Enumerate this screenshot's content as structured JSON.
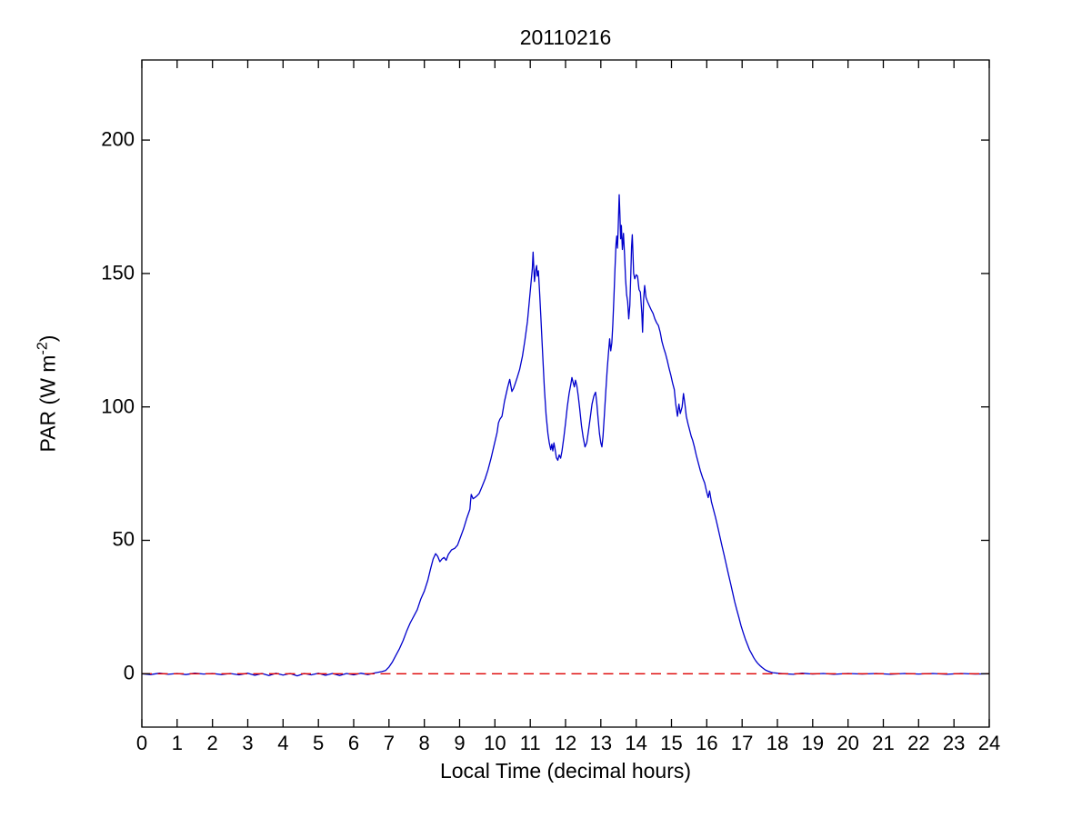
{
  "figure": {
    "background": "#ffffff",
    "axis_color": "#000000"
  },
  "chart_data": {
    "type": "line",
    "title": "20110216",
    "xlabel": "Local Time (decimal hours)",
    "ylabel": {
      "prefix": "PAR (W m",
      "superscript": "-2",
      "suffix": ")"
    },
    "xlim": [
      0,
      24
    ],
    "ylim": [
      -20,
      230
    ],
    "x_ticks": [
      0,
      1,
      2,
      3,
      4,
      5,
      6,
      7,
      8,
      9,
      10,
      11,
      12,
      13,
      14,
      15,
      16,
      17,
      18,
      19,
      20,
      21,
      22,
      23,
      24
    ],
    "y_ticks": [
      0,
      50,
      100,
      150,
      200
    ],
    "grid": false,
    "legend_position": "none",
    "series": [
      {
        "name": "par",
        "color": "#0000cc",
        "style": "solid",
        "points": [
          [
            0,
            0
          ],
          [
            0.25,
            -0.3
          ],
          [
            0.5,
            0.2
          ],
          [
            0.75,
            -0.2
          ],
          [
            1,
            0.1
          ],
          [
            1.25,
            -0.3
          ],
          [
            1.5,
            0.2
          ],
          [
            1.75,
            -0.1
          ],
          [
            2,
            0.1
          ],
          [
            2.25,
            -0.3
          ],
          [
            2.5,
            0.1
          ],
          [
            2.75,
            -0.4
          ],
          [
            3,
            0.2
          ],
          [
            3.2,
            -0.6
          ],
          [
            3.4,
            0.1
          ],
          [
            3.6,
            -0.7
          ],
          [
            3.8,
            0.2
          ],
          [
            4,
            -0.5
          ],
          [
            4.2,
            0.1
          ],
          [
            4.4,
            -0.8
          ],
          [
            4.6,
            0.1
          ],
          [
            4.8,
            -0.4
          ],
          [
            5,
            0.2
          ],
          [
            5.2,
            -0.6
          ],
          [
            5.4,
            0.1
          ],
          [
            5.6,
            -0.7
          ],
          [
            5.8,
            0.1
          ],
          [
            6,
            -0.4
          ],
          [
            6.2,
            0.2
          ],
          [
            6.4,
            -0.3
          ],
          [
            6.6,
            0.3
          ],
          [
            6.8,
            0.8
          ],
          [
            6.9,
            1.2
          ],
          [
            7,
            2.5
          ],
          [
            7.1,
            4.5
          ],
          [
            7.2,
            7
          ],
          [
            7.3,
            9.5
          ],
          [
            7.4,
            12.5
          ],
          [
            7.5,
            16
          ],
          [
            7.6,
            19
          ],
          [
            7.7,
            21.5
          ],
          [
            7.8,
            24
          ],
          [
            7.9,
            28
          ],
          [
            8,
            31
          ],
          [
            8.1,
            35
          ],
          [
            8.17,
            39
          ],
          [
            8.25,
            43
          ],
          [
            8.32,
            45
          ],
          [
            8.38,
            44
          ],
          [
            8.44,
            42
          ],
          [
            8.5,
            43
          ],
          [
            8.56,
            43.6
          ],
          [
            8.62,
            42.5
          ],
          [
            8.68,
            44.7
          ],
          [
            8.77,
            46.4
          ],
          [
            8.86,
            47
          ],
          [
            8.94,
            48.2
          ],
          [
            9.03,
            51.4
          ],
          [
            9.11,
            54.3
          ],
          [
            9.2,
            58.2
          ],
          [
            9.29,
            61.6
          ],
          [
            9.31,
            64.5
          ],
          [
            9.33,
            67.2
          ],
          [
            9.38,
            65.6
          ],
          [
            9.43,
            66
          ],
          [
            9.5,
            66.8
          ],
          [
            9.55,
            67.5
          ],
          [
            9.63,
            70
          ],
          [
            9.72,
            73
          ],
          [
            9.8,
            76.3
          ],
          [
            9.89,
            80.8
          ],
          [
            9.97,
            85.3
          ],
          [
            10.06,
            90.4
          ],
          [
            10.1,
            94
          ],
          [
            10.14,
            95.4
          ],
          [
            10.2,
            96.5
          ],
          [
            10.27,
            102
          ],
          [
            10.36,
            107.3
          ],
          [
            10.42,
            110.3
          ],
          [
            10.48,
            105.8
          ],
          [
            10.53,
            107
          ],
          [
            10.58,
            109
          ],
          [
            10.63,
            111
          ],
          [
            10.7,
            114
          ],
          [
            10.78,
            119
          ],
          [
            10.85,
            125
          ],
          [
            10.92,
            132
          ],
          [
            10.97,
            139
          ],
          [
            11.02,
            146
          ],
          [
            11.06,
            152
          ],
          [
            11.08,
            158
          ],
          [
            11.1,
            153
          ],
          [
            11.12,
            147
          ],
          [
            11.15,
            151
          ],
          [
            11.18,
            153
          ],
          [
            11.2,
            149
          ],
          [
            11.23,
            151
          ],
          [
            11.26,
            144
          ],
          [
            11.3,
            134
          ],
          [
            11.35,
            120
          ],
          [
            11.4,
            107
          ],
          [
            11.45,
            97
          ],
          [
            11.5,
            90
          ],
          [
            11.54,
            86.5
          ],
          [
            11.58,
            84
          ],
          [
            11.61,
            86
          ],
          [
            11.64,
            83.5
          ],
          [
            11.67,
            86.5
          ],
          [
            11.7,
            84.5
          ],
          [
            11.74,
            81
          ],
          [
            11.78,
            80
          ],
          [
            11.82,
            82
          ],
          [
            11.86,
            80.8
          ],
          [
            11.9,
            83.5
          ],
          [
            11.95,
            88.5
          ],
          [
            12,
            94
          ],
          [
            12.05,
            100
          ],
          [
            12.1,
            105
          ],
          [
            12.15,
            108.5
          ],
          [
            12.18,
            111
          ],
          [
            12.22,
            109
          ],
          [
            12.25,
            107.5
          ],
          [
            12.28,
            110
          ],
          [
            12.32,
            108
          ],
          [
            12.36,
            104
          ],
          [
            12.4,
            99.5
          ],
          [
            12.45,
            93
          ],
          [
            12.5,
            88.5
          ],
          [
            12.55,
            85
          ],
          [
            12.6,
            86.5
          ],
          [
            12.65,
            91
          ],
          [
            12.7,
            96
          ],
          [
            12.75,
            101
          ],
          [
            12.8,
            104
          ],
          [
            12.85,
            105.5
          ],
          [
            12.88,
            102
          ],
          [
            12.92,
            96
          ],
          [
            12.96,
            90
          ],
          [
            13,
            86.5
          ],
          [
            13.03,
            85
          ],
          [
            13.06,
            89
          ],
          [
            13.1,
            97
          ],
          [
            13.14,
            106
          ],
          [
            13.18,
            114
          ],
          [
            13.22,
            121
          ],
          [
            13.25,
            125.5
          ],
          [
            13.28,
            121
          ],
          [
            13.31,
            124
          ],
          [
            13.34,
            131
          ],
          [
            13.37,
            141
          ],
          [
            13.4,
            152
          ],
          [
            13.43,
            161
          ],
          [
            13.45,
            164
          ],
          [
            13.47,
            159.5
          ],
          [
            13.49,
            167
          ],
          [
            13.52,
            179.5
          ],
          [
            13.54,
            172
          ],
          [
            13.56,
            163
          ],
          [
            13.58,
            168
          ],
          [
            13.61,
            159
          ],
          [
            13.64,
            165
          ],
          [
            13.67,
            157
          ],
          [
            13.7,
            148
          ],
          [
            13.73,
            142
          ],
          [
            13.76,
            139.5
          ],
          [
            13.79,
            133
          ],
          [
            13.82,
            138
          ],
          [
            13.85,
            150
          ],
          [
            13.87,
            160
          ],
          [
            13.89,
            164.5
          ],
          [
            13.91,
            157
          ],
          [
            13.93,
            150
          ],
          [
            13.96,
            148
          ],
          [
            14,
            149.5
          ],
          [
            14.04,
            149
          ],
          [
            14.08,
            144
          ],
          [
            14.12,
            143
          ],
          [
            14.16,
            135
          ],
          [
            14.18,
            128
          ],
          [
            14.21,
            140
          ],
          [
            14.24,
            145.5
          ],
          [
            14.28,
            141
          ],
          [
            14.32,
            139.5
          ],
          [
            14.37,
            138
          ],
          [
            14.42,
            136.5
          ],
          [
            14.48,
            135
          ],
          [
            14.53,
            133
          ],
          [
            14.58,
            131.5
          ],
          [
            14.63,
            130.5
          ],
          [
            14.68,
            128
          ],
          [
            14.73,
            124.5
          ],
          [
            14.78,
            122
          ],
          [
            14.83,
            120
          ],
          [
            14.88,
            117.5
          ],
          [
            14.93,
            114.5
          ],
          [
            14.98,
            112
          ],
          [
            15.03,
            109
          ],
          [
            15.08,
            106.5
          ],
          [
            15.12,
            101
          ],
          [
            15.17,
            96.5
          ],
          [
            15.21,
            101
          ],
          [
            15.25,
            97.5
          ],
          [
            15.3,
            100
          ],
          [
            15.34,
            105
          ],
          [
            15.38,
            101
          ],
          [
            15.42,
            96.5
          ],
          [
            15.47,
            93.5
          ],
          [
            15.51,
            91.5
          ],
          [
            15.56,
            89
          ],
          [
            15.6,
            87.5
          ],
          [
            15.65,
            85
          ],
          [
            15.7,
            82
          ],
          [
            15.76,
            79
          ],
          [
            15.82,
            76
          ],
          [
            15.88,
            73.5
          ],
          [
            15.94,
            71.5
          ],
          [
            16,
            68
          ],
          [
            16.04,
            66
          ],
          [
            16.08,
            68.5
          ],
          [
            16.13,
            64.5
          ],
          [
            16.19,
            61.5
          ],
          [
            16.25,
            58.5
          ],
          [
            16.31,
            55
          ],
          [
            16.37,
            51.5
          ],
          [
            16.43,
            48
          ],
          [
            16.49,
            44.5
          ],
          [
            16.55,
            41
          ],
          [
            16.61,
            37.5
          ],
          [
            16.67,
            34
          ],
          [
            16.73,
            30.5
          ],
          [
            16.79,
            27
          ],
          [
            16.85,
            24
          ],
          [
            16.91,
            21
          ],
          [
            16.97,
            18
          ],
          [
            17.03,
            15.5
          ],
          [
            17.09,
            13
          ],
          [
            17.15,
            11
          ],
          [
            17.21,
            9
          ],
          [
            17.27,
            7.5
          ],
          [
            17.33,
            6
          ],
          [
            17.39,
            4.8
          ],
          [
            17.45,
            3.8
          ],
          [
            17.51,
            3
          ],
          [
            17.57,
            2.3
          ],
          [
            17.63,
            1.7
          ],
          [
            17.69,
            1.2
          ],
          [
            17.75,
            0.9
          ],
          [
            17.81,
            0.6
          ],
          [
            17.87,
            0.4
          ],
          [
            17.93,
            0.3
          ],
          [
            18,
            0.2
          ],
          [
            18.1,
            0.1
          ],
          [
            18.2,
            0
          ],
          [
            18.45,
            -0.2
          ],
          [
            18.7,
            0.2
          ],
          [
            19,
            -0.1
          ],
          [
            19.3,
            0.1
          ],
          [
            19.6,
            -0.2
          ],
          [
            20,
            0.1
          ],
          [
            20.4,
            -0.1
          ],
          [
            20.8,
            0.1
          ],
          [
            21.2,
            -0.2
          ],
          [
            21.6,
            0.1
          ],
          [
            22,
            -0.1
          ],
          [
            22.4,
            0.1
          ],
          [
            22.8,
            -0.2
          ],
          [
            23.2,
            0.1
          ],
          [
            23.6,
            -0.1
          ],
          [
            24,
            0
          ]
        ]
      },
      {
        "name": "zero-reference",
        "color": "#dd0000",
        "style": "dashed",
        "points": [
          [
            0,
            0
          ],
          [
            24,
            0
          ]
        ]
      }
    ]
  }
}
